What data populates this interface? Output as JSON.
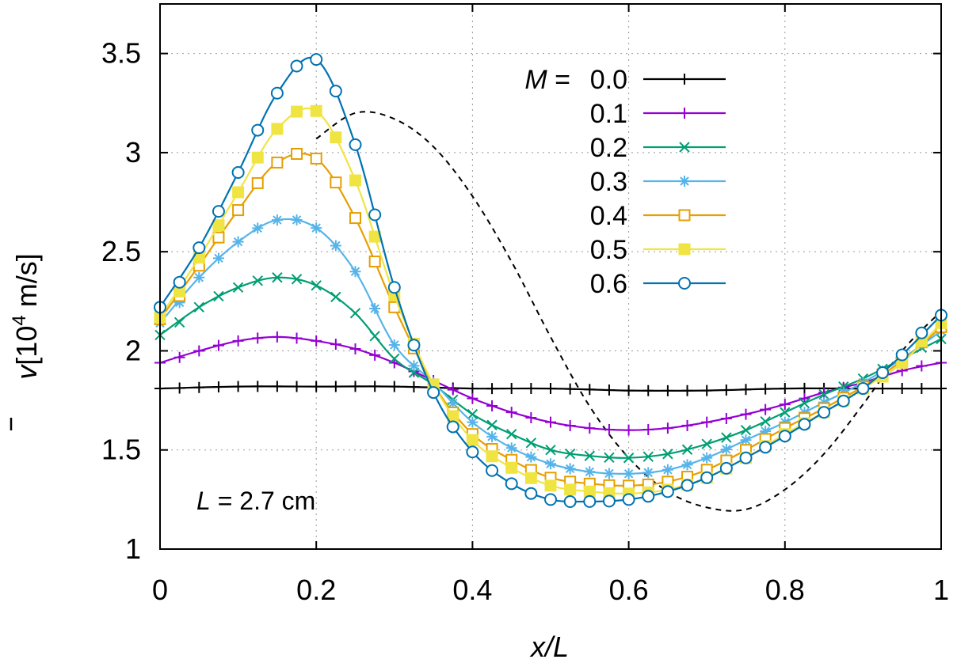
{
  "chart_data": {
    "type": "line",
    "xlabel_var": "x/L",
    "ylabel_sym": "v",
    "ylabel_base": "[10",
    "ylabel_exp": "4",
    "ylabel_unit": " m/s]",
    "xlim": [
      0,
      1
    ],
    "ylim": [
      1,
      3.75
    ],
    "x_ticks": [
      0,
      0.2,
      0.4,
      0.6,
      0.8,
      1
    ],
    "x_tick_labels": [
      "0",
      "0.2",
      "0.4",
      "0.6",
      "0.8",
      "1"
    ],
    "y_ticks": [
      1,
      1.5,
      2,
      2.5,
      3,
      3.5
    ],
    "y_tick_labels": [
      "1",
      "1.5",
      "2",
      "2.5",
      "3",
      "3.5"
    ],
    "grid": true,
    "legend_position": "top-right",
    "legend_var": "M",
    "legend_eq": " =",
    "annotation": {
      "var": "L",
      "text": " = 2.7 cm"
    },
    "reference_curve": {
      "style": "dashed",
      "x": [
        0.2,
        0.25,
        0.3,
        0.35,
        0.4,
        0.45,
        0.5,
        0.55,
        0.6,
        0.65,
        0.7,
        0.75,
        0.8,
        0.85,
        0.9,
        0.95,
        1.0
      ],
      "y": [
        3.07,
        3.2,
        3.17,
        3.03,
        2.78,
        2.45,
        2.07,
        1.72,
        1.46,
        1.29,
        1.21,
        1.2,
        1.3,
        1.48,
        1.73,
        2.0,
        2.2
      ]
    },
    "series": [
      {
        "name": "0.0",
        "color": "#000000",
        "marker": "plus",
        "x": [
          0,
          0.1,
          0.2,
          0.3,
          0.4,
          0.5,
          0.6,
          0.7,
          0.8,
          0.9,
          1.0
        ],
        "y": [
          1.81,
          1.82,
          1.82,
          1.82,
          1.81,
          1.81,
          1.8,
          1.8,
          1.81,
          1.81,
          1.81
        ]
      },
      {
        "name": "0.1",
        "color": "#9400d3",
        "marker": "plus",
        "x": [
          0,
          0.05,
          0.1,
          0.15,
          0.2,
          0.25,
          0.3,
          0.35,
          0.4,
          0.45,
          0.5,
          0.55,
          0.6,
          0.65,
          0.7,
          0.75,
          0.8,
          0.85,
          0.9,
          0.95,
          1.0
        ],
        "y": [
          1.94,
          2.0,
          2.05,
          2.07,
          2.05,
          2.01,
          1.94,
          1.85,
          1.76,
          1.69,
          1.64,
          1.61,
          1.6,
          1.61,
          1.64,
          1.68,
          1.73,
          1.79,
          1.84,
          1.9,
          1.94
        ]
      },
      {
        "name": "0.2",
        "color": "#009e73",
        "marker": "cross",
        "x": [
          0,
          0.05,
          0.1,
          0.15,
          0.2,
          0.25,
          0.3,
          0.35,
          0.4,
          0.45,
          0.5,
          0.55,
          0.6,
          0.65,
          0.7,
          0.75,
          0.8,
          0.85,
          0.9,
          0.95,
          1.0
        ],
        "y": [
          2.08,
          2.22,
          2.32,
          2.37,
          2.33,
          2.19,
          1.96,
          1.83,
          1.68,
          1.58,
          1.5,
          1.47,
          1.46,
          1.48,
          1.53,
          1.6,
          1.69,
          1.78,
          1.86,
          1.96,
          2.06
        ]
      },
      {
        "name": "0.3",
        "color": "#56b4e9",
        "marker": "star",
        "x": [
          0,
          0.05,
          0.1,
          0.15,
          0.2,
          0.25,
          0.3,
          0.35,
          0.4,
          0.45,
          0.5,
          0.55,
          0.6,
          0.65,
          0.7,
          0.75,
          0.8,
          0.85,
          0.9,
          0.95,
          1.0
        ],
        "y": [
          2.14,
          2.37,
          2.55,
          2.66,
          2.62,
          2.4,
          2.03,
          1.84,
          1.64,
          1.51,
          1.43,
          1.39,
          1.38,
          1.4,
          1.46,
          1.55,
          1.64,
          1.74,
          1.84,
          1.96,
          2.1
        ]
      },
      {
        "name": "0.4",
        "color": "#e69f00",
        "marker": "square-open",
        "x": [
          0,
          0.05,
          0.1,
          0.15,
          0.2,
          0.25,
          0.3,
          0.35,
          0.4,
          0.45,
          0.5,
          0.55,
          0.6,
          0.65,
          0.7,
          0.75,
          0.8,
          0.85,
          0.9,
          0.95,
          1.0
        ],
        "y": [
          2.16,
          2.43,
          2.71,
          2.95,
          2.97,
          2.67,
          2.22,
          1.83,
          1.58,
          1.45,
          1.36,
          1.33,
          1.32,
          1.34,
          1.4,
          1.5,
          1.61,
          1.71,
          1.82,
          1.95,
          2.12
        ]
      },
      {
        "name": "0.5",
        "color": "#f0e442",
        "marker": "square-filled",
        "x": [
          0,
          0.05,
          0.1,
          0.15,
          0.2,
          0.25,
          0.3,
          0.35,
          0.4,
          0.45,
          0.5,
          0.55,
          0.6,
          0.65,
          0.7,
          0.75,
          0.8,
          0.85,
          0.9,
          0.95,
          1.0
        ],
        "y": [
          2.17,
          2.47,
          2.8,
          3.12,
          3.21,
          2.86,
          2.28,
          1.83,
          1.55,
          1.41,
          1.32,
          1.29,
          1.28,
          1.3,
          1.36,
          1.46,
          1.58,
          1.69,
          1.81,
          1.94,
          2.14
        ]
      },
      {
        "name": "0.6",
        "color": "#0072b2",
        "marker": "circle-open",
        "x": [
          0,
          0.05,
          0.1,
          0.15,
          0.2,
          0.25,
          0.3,
          0.35,
          0.4,
          0.45,
          0.5,
          0.55,
          0.6,
          0.65,
          0.7,
          0.75,
          0.8,
          0.85,
          0.9,
          0.95,
          1.0
        ],
        "y": [
          2.22,
          2.52,
          2.9,
          3.3,
          3.47,
          3.04,
          2.32,
          1.79,
          1.49,
          1.33,
          1.25,
          1.24,
          1.25,
          1.29,
          1.36,
          1.46,
          1.57,
          1.69,
          1.81,
          1.98,
          2.18
        ]
      }
    ]
  }
}
